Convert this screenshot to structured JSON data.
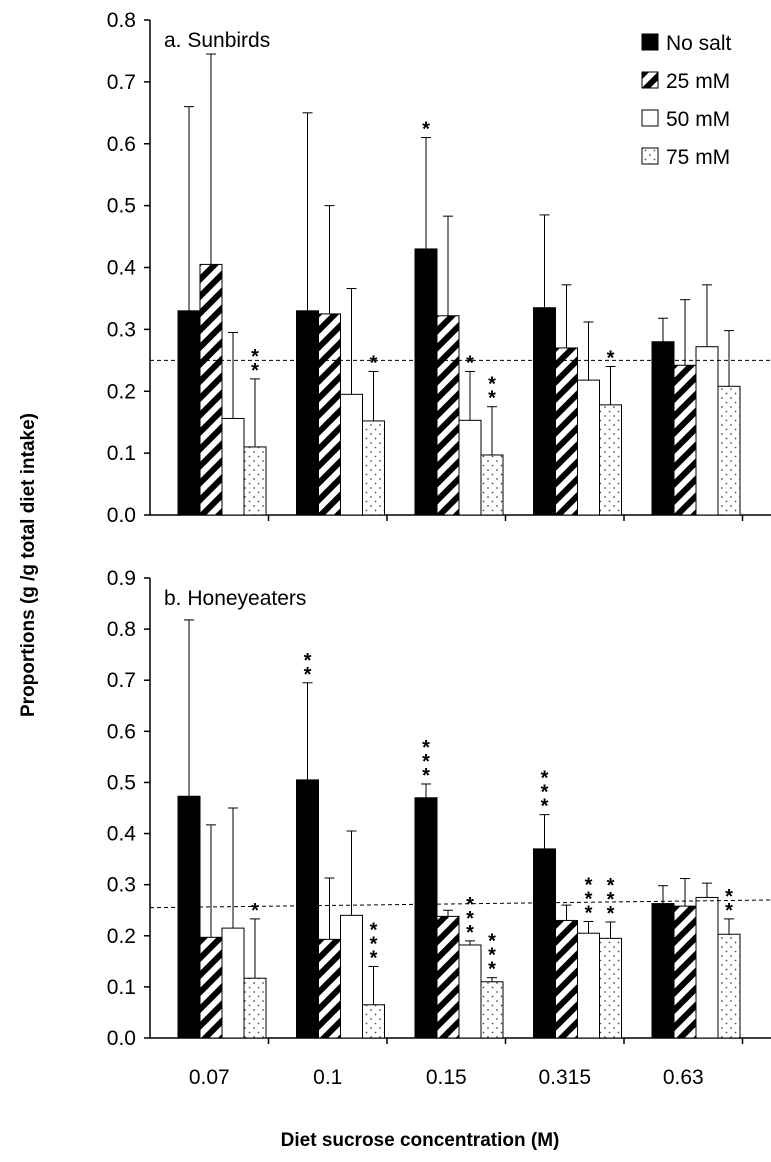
{
  "chart_data": [
    {
      "type": "bar",
      "panel_label": "a. Sunbirds",
      "categories": [
        "0.07",
        "0.1",
        "0.15",
        "0.315",
        "0.63"
      ],
      "ylim": [
        0,
        0.8
      ],
      "yticks": [
        "0.0",
        "0.1",
        "0.2",
        "0.3",
        "0.4",
        "0.5",
        "0.6",
        "0.7",
        "0.8"
      ],
      "reference_line": 0.25,
      "series": [
        {
          "name": "No salt",
          "fill": "solid",
          "values": [
            0.33,
            0.33,
            0.43,
            0.335,
            0.28
          ],
          "error": [
            0.66,
            0.65,
            0.61,
            0.485,
            0.318
          ]
        },
        {
          "name": "25 mM",
          "fill": "hatch",
          "values": [
            0.405,
            0.325,
            0.322,
            0.27,
            0.242
          ],
          "error": [
            0.745,
            0.5,
            0.483,
            0.372,
            0.348
          ]
        },
        {
          "name": "50 mM",
          "fill": "white",
          "values": [
            0.156,
            0.195,
            0.153,
            0.218,
            0.272
          ],
          "error": [
            0.295,
            0.366,
            0.232,
            0.312,
            0.372
          ]
        },
        {
          "name": "75 mM",
          "fill": "dots",
          "values": [
            0.11,
            0.152,
            0.097,
            0.178,
            0.208
          ],
          "error": [
            0.22,
            0.232,
            0.175,
            0.24,
            0.298
          ]
        }
      ],
      "significance": [
        {
          "category": 0,
          "series": 3,
          "label": "**"
        },
        {
          "category": 1,
          "series": 3,
          "label": "*"
        },
        {
          "category": 2,
          "series": 0,
          "label": "*"
        },
        {
          "category": 2,
          "series": 2,
          "label": "*"
        },
        {
          "category": 2,
          "series": 3,
          "label": "**"
        },
        {
          "category": 3,
          "series": 3,
          "label": "*"
        }
      ]
    },
    {
      "type": "bar",
      "panel_label": "b. Honeyeaters",
      "categories": [
        "0.07",
        "0.1",
        "0.15",
        "0.315",
        "0.63"
      ],
      "ylim": [
        0,
        0.9
      ],
      "yticks": [
        "0.0",
        "0.1",
        "0.2",
        "0.3",
        "0.4",
        "0.5",
        "0.6",
        "0.7",
        "0.8",
        "0.9"
      ],
      "reference_line_start": 0.255,
      "reference_line_end": 0.27,
      "series": [
        {
          "name": "No salt",
          "fill": "solid",
          "values": [
            0.473,
            0.505,
            0.47,
            0.37,
            0.263
          ],
          "error": [
            0.818,
            0.695,
            0.497,
            0.437,
            0.298
          ]
        },
        {
          "name": "25 mM",
          "fill": "hatch",
          "values": [
            0.197,
            0.193,
            0.238,
            0.23,
            0.258
          ],
          "error": [
            0.417,
            0.313,
            0.25,
            0.26,
            0.312
          ]
        },
        {
          "name": "50 mM",
          "fill": "white",
          "values": [
            0.215,
            0.24,
            0.182,
            0.205,
            0.275
          ],
          "error": [
            0.45,
            0.405,
            0.19,
            0.228,
            0.303
          ]
        },
        {
          "name": "75 mM",
          "fill": "dots",
          "values": [
            0.117,
            0.065,
            0.11,
            0.195,
            0.203
          ],
          "error": [
            0.233,
            0.14,
            0.118,
            0.227,
            0.233
          ]
        }
      ],
      "significance": [
        {
          "category": 0,
          "series": 3,
          "label": "*"
        },
        {
          "category": 1,
          "series": 0,
          "label": "**"
        },
        {
          "category": 1,
          "series": 3,
          "label": "***"
        },
        {
          "category": 2,
          "series": 0,
          "label": "***"
        },
        {
          "category": 2,
          "series": 2,
          "label": "***"
        },
        {
          "category": 2,
          "series": 3,
          "label": "***"
        },
        {
          "category": 3,
          "series": 0,
          "label": "***"
        },
        {
          "category": 3,
          "series": 2,
          "label": "***"
        },
        {
          "category": 3,
          "series": 3,
          "label": "***"
        },
        {
          "category": 4,
          "series": 3,
          "label": "**"
        }
      ]
    }
  ],
  "xlabel": "Diet sucrose concentration (M)",
  "ylabel": "Proportions (g /g total diet intake)",
  "legend": [
    {
      "label": "No salt",
      "fill": "solid"
    },
    {
      "label": "25 mM",
      "fill": "hatch"
    },
    {
      "label": "50 mM",
      "fill": "white"
    },
    {
      "label": "75 mM",
      "fill": "dots"
    }
  ],
  "legend_position": "top-right",
  "colors": {
    "bar": "#000000",
    "background": "#ffffff"
  }
}
